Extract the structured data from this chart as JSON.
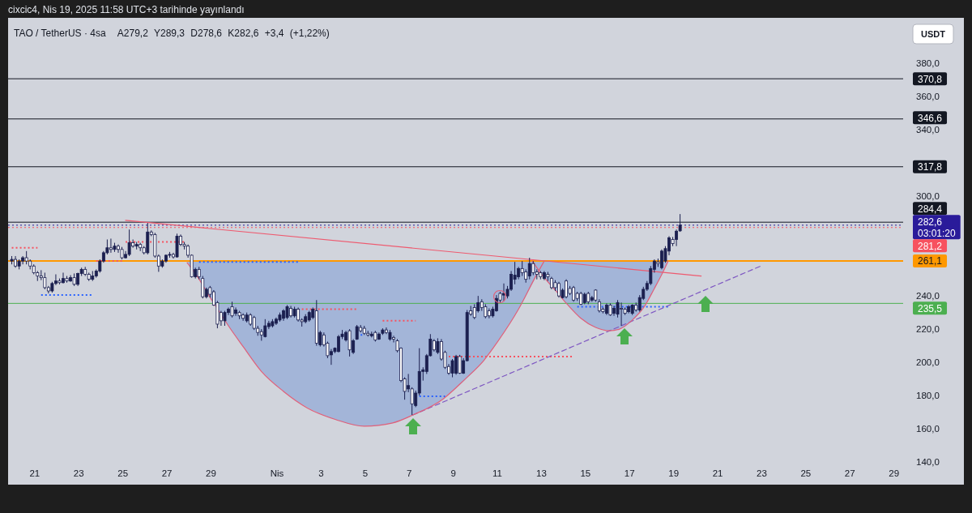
{
  "chart_data": {
    "type": "candlestick",
    "title": "TAO / TetherUS · 4sa",
    "subtitle": "A279,2 Y289,3 D278,6 K282,6 +3,4 (+1,22%)",
    "ylabel": "USDT",
    "annotations": [
      "cixcic4, Nis 19, 2025 11:58 UTC+3 tarihinde yayınlandı"
    ],
    "color": "#1b1f4f",
    "x": [
      "2025-03-19T23:00",
      "2025-03-20T03:00",
      "2025-03-20T07:00",
      "2025-03-20T11:00",
      "2025-03-20T15:00",
      "2025-03-20T19:00",
      "2025-03-20T23:00",
      "2025-03-21T03:00",
      "2025-03-21T07:00",
      "2025-03-21T11:00",
      "2025-03-21T15:00",
      "2025-03-21T19:00",
      "2025-03-21T23:00",
      "2025-03-22T03:00",
      "2025-03-22T07:00",
      "2025-03-22T11:00",
      "2025-03-22T15:00",
      "2025-03-22T19:00",
      "2025-03-22T23:00",
      "2025-03-23T03:00",
      "2025-03-23T07:00",
      "2025-03-23T11:00",
      "2025-03-23T15:00",
      "2025-03-23T19:00",
      "2025-03-23T23:00",
      "2025-03-24T03:00",
      "2025-03-24T07:00",
      "2025-03-24T11:00",
      "2025-03-24T15:00",
      "2025-03-24T19:00",
      "2025-03-24T23:00",
      "2025-03-25T03:00",
      "2025-03-25T07:00",
      "2025-03-25T11:00",
      "2025-03-25T15:00",
      "2025-03-25T19:00",
      "2025-03-25T23:00",
      "2025-03-26T03:00",
      "2025-03-26T07:00",
      "2025-03-26T11:00",
      "2025-03-26T15:00",
      "2025-03-26T19:00",
      "2025-03-26T23:00",
      "2025-03-27T03:00",
      "2025-03-27T07:00",
      "2025-03-27T11:00",
      "2025-03-27T15:00",
      "2025-03-27T19:00",
      "2025-03-27T23:00",
      "2025-03-28T03:00",
      "2025-03-28T07:00",
      "2025-03-28T11:00",
      "2025-03-28T15:00",
      "2025-03-28T19:00",
      "2025-03-28T23:00",
      "2025-03-29T03:00",
      "2025-03-29T07:00",
      "2025-03-29T11:00",
      "2025-03-29T15:00",
      "2025-03-29T19:00",
      "2025-03-29T23:00",
      "2025-03-30T03:00",
      "2025-03-30T07:00",
      "2025-03-30T11:00",
      "2025-03-30T15:00",
      "2025-03-30T19:00",
      "2025-03-30T23:00",
      "2025-03-31T03:00",
      "2025-03-31T07:00",
      "2025-03-31T11:00",
      "2025-03-31T15:00",
      "2025-03-31T19:00",
      "2025-03-31T23:00",
      "2025-04-01T03:00",
      "2025-04-01T07:00",
      "2025-04-01T11:00",
      "2025-04-01T15:00",
      "2025-04-01T19:00",
      "2025-04-01T23:00",
      "2025-04-02T03:00",
      "2025-04-02T07:00",
      "2025-04-02T11:00",
      "2025-04-02T15:00",
      "2025-04-02T19:00",
      "2025-04-02T23:00",
      "2025-04-03T03:00",
      "2025-04-03T07:00",
      "2025-04-03T11:00",
      "2025-04-03T15:00",
      "2025-04-03T19:00",
      "2025-04-03T23:00",
      "2025-04-04T03:00",
      "2025-04-04T07:00",
      "2025-04-04T11:00",
      "2025-04-04T15:00",
      "2025-04-04T19:00",
      "2025-04-04T23:00",
      "2025-04-05T03:00",
      "2025-04-05T07:00",
      "2025-04-05T11:00",
      "2025-04-05T15:00",
      "2025-04-05T19:00",
      "2025-04-05T23:00",
      "2025-04-06T03:00",
      "2025-04-06T07:00",
      "2025-04-06T11:00",
      "2025-04-06T15:00",
      "2025-04-06T19:00",
      "2025-04-06T23:00",
      "2025-04-07T03:00",
      "2025-04-07T07:00",
      "2025-04-07T11:00",
      "2025-04-07T15:00",
      "2025-04-07T19:00",
      "2025-04-07T23:00",
      "2025-04-08T03:00",
      "2025-04-08T07:00",
      "2025-04-08T11:00",
      "2025-04-08T15:00",
      "2025-04-08T19:00",
      "2025-04-08T23:00",
      "2025-04-09T03:00",
      "2025-04-09T07:00",
      "2025-04-09T11:00",
      "2025-04-09T15:00",
      "2025-04-09T19:00",
      "2025-04-09T23:00",
      "2025-04-10T03:00",
      "2025-04-10T07:00",
      "2025-04-10T11:00",
      "2025-04-10T15:00",
      "2025-04-10T19:00",
      "2025-04-10T23:00",
      "2025-04-11T03:00",
      "2025-04-11T07:00",
      "2025-04-11T11:00",
      "2025-04-11T15:00",
      "2025-04-11T19:00",
      "2025-04-11T23:00",
      "2025-04-12T03:00",
      "2025-04-12T07:00",
      "2025-04-12T11:00",
      "2025-04-12T15:00",
      "2025-04-12T19:00",
      "2025-04-12T23:00",
      "2025-04-13T03:00",
      "2025-04-13T07:00",
      "2025-04-13T11:00",
      "2025-04-13T15:00",
      "2025-04-13T19:00",
      "2025-04-13T23:00",
      "2025-04-14T03:00",
      "2025-04-14T07:00",
      "2025-04-14T11:00",
      "2025-04-14T15:00",
      "2025-04-14T19:00",
      "2025-04-14T23:00",
      "2025-04-15T03:00",
      "2025-04-15T07:00",
      "2025-04-15T11:00",
      "2025-04-15T15:00",
      "2025-04-15T19:00",
      "2025-04-15T23:00",
      "2025-04-16T03:00",
      "2025-04-16T07:00",
      "2025-04-16T11:00",
      "2025-04-16T15:00",
      "2025-04-16T19:00",
      "2025-04-16T23:00",
      "2025-04-17T03:00",
      "2025-04-17T07:00",
      "2025-04-17T11:00",
      "2025-04-17T15:00",
      "2025-04-17T19:00",
      "2025-04-17T23:00",
      "2025-04-18T03:00",
      "2025-04-18T07:00",
      "2025-04-18T11:00",
      "2025-04-18T15:00",
      "2025-04-18T19:00",
      "2025-04-18T23:00",
      "2025-04-19T03:00",
      "2025-04-19T07:00"
    ],
    "ohlc": [
      [
        261,
        264,
        259,
        262
      ],
      [
        262,
        264,
        257,
        258
      ],
      [
        258,
        262,
        256,
        261
      ],
      [
        261,
        264,
        259,
        263
      ],
      [
        263,
        267,
        259,
        261
      ],
      [
        261,
        262,
        256,
        258
      ],
      [
        258,
        259,
        253,
        254
      ],
      [
        254,
        255,
        249,
        252
      ],
      [
        252,
        255.5,
        249.5,
        251
      ],
      [
        251,
        254,
        244,
        245
      ],
      [
        245,
        246,
        241.5,
        243
      ],
      [
        243,
        248.5,
        242,
        247.5
      ],
      [
        247.5,
        253,
        246.5,
        249
      ],
      [
        249,
        250.5,
        247,
        248
      ],
      [
        248,
        254,
        247.5,
        250.5
      ],
      [
        250.5,
        252,
        248,
        249
      ],
      [
        249,
        252.5,
        248.5,
        251
      ],
      [
        251,
        253.5,
        246,
        247
      ],
      [
        247,
        254,
        246,
        253.5
      ],
      [
        253.5,
        257,
        252,
        256
      ],
      [
        256,
        257.5,
        252,
        253
      ],
      [
        253,
        254,
        249,
        250
      ],
      [
        250,
        255,
        249,
        252
      ],
      [
        252,
        256,
        251,
        255
      ],
      [
        255,
        262,
        254,
        261
      ],
      [
        261,
        267,
        260,
        266
      ],
      [
        266,
        274,
        265,
        269
      ],
      [
        269,
        274.5,
        266,
        268
      ],
      [
        268,
        272,
        266.5,
        270
      ],
      [
        270,
        271,
        266,
        268
      ],
      [
        268,
        269.5,
        262,
        263
      ],
      [
        263,
        267,
        262.5,
        265
      ],
      [
        265,
        280,
        264,
        272
      ],
      [
        272,
        274,
        269,
        270
      ],
      [
        270,
        272.5,
        268,
        271
      ],
      [
        271,
        272,
        267,
        269
      ],
      [
        269,
        270,
        265,
        266
      ],
      [
        266,
        284,
        265,
        278.5
      ],
      [
        278.5,
        279.5,
        276,
        277
      ],
      [
        277,
        278,
        263,
        264
      ],
      [
        264,
        265,
        254.5,
        258
      ],
      [
        258,
        262,
        257,
        261
      ],
      [
        261,
        265,
        260,
        264.5
      ],
      [
        264.5,
        266.5,
        263,
        265
      ],
      [
        265,
        266,
        262.5,
        263.5
      ],
      [
        263.5,
        277.5,
        263,
        276
      ],
      [
        276,
        277,
        270,
        271
      ],
      [
        271,
        272.5,
        268,
        270
      ],
      [
        270,
        271,
        263,
        264.5
      ],
      [
        264.5,
        265,
        251,
        251.5
      ],
      [
        251.5,
        257,
        250.5,
        256
      ],
      [
        256,
        257.5,
        250,
        251.5
      ],
      [
        250.5,
        252,
        238.5,
        239.5
      ],
      [
        239.5,
        245,
        238.5,
        244
      ],
      [
        245,
        246,
        239,
        241
      ],
      [
        242.5,
        243.5,
        234,
        234.5
      ],
      [
        236,
        237,
        220.5,
        223
      ],
      [
        230,
        231,
        222,
        225
      ],
      [
        225,
        231,
        222,
        230
      ],
      [
        230,
        233,
        228.5,
        232
      ],
      [
        233.5,
        236.5,
        227,
        228
      ],
      [
        229.5,
        233,
        228,
        231.5
      ],
      [
        230,
        231,
        226,
        228
      ],
      [
        228.5,
        229.5,
        225,
        226.5
      ],
      [
        225,
        230,
        224,
        228.5
      ],
      [
        228.5,
        229.5,
        222,
        223
      ],
      [
        227,
        228,
        219.5,
        220.5
      ],
      [
        220.5,
        222,
        216,
        218
      ],
      [
        218.5,
        220,
        213,
        216.5
      ],
      [
        215.5,
        226,
        215,
        222
      ],
      [
        221.5,
        225,
        220,
        223.5
      ],
      [
        222,
        226,
        221,
        224.5
      ],
      [
        223.5,
        227,
        222.5,
        226
      ],
      [
        225.5,
        230,
        224.5,
        228.5
      ],
      [
        226.5,
        232,
        225,
        231
      ],
      [
        227,
        234.5,
        226,
        233.5
      ],
      [
        232.5,
        234,
        227,
        228
      ],
      [
        228,
        233.5,
        227,
        232
      ],
      [
        232,
        233,
        224.5,
        225.5
      ],
      [
        225.5,
        226.5,
        221.5,
        224.5
      ],
      [
        224.5,
        229,
        223.5,
        227.5
      ],
      [
        225.5,
        231,
        224.5,
        230
      ],
      [
        227,
        233,
        226,
        232
      ],
      [
        231,
        237.5,
        210,
        211.5
      ],
      [
        210.5,
        219,
        209.5,
        218
      ],
      [
        216.5,
        218,
        209.5,
        210.5
      ],
      [
        211.5,
        212.5,
        202.5,
        204
      ],
      [
        204.5,
        208,
        198.5,
        206.5
      ],
      [
        206.5,
        209,
        205.5,
        208.5
      ],
      [
        206.5,
        216.5,
        206,
        215.5
      ],
      [
        215.5,
        219.5,
        214,
        217
      ],
      [
        213.5,
        219,
        212.5,
        218
      ],
      [
        219,
        220,
        203.5,
        207.5
      ],
      [
        206,
        214,
        205,
        213
      ],
      [
        214,
        222.5,
        213.5,
        221.5
      ],
      [
        221,
        222.5,
        218,
        219
      ],
      [
        220.5,
        222,
        216.5,
        217.5
      ],
      [
        217.5,
        219,
        215.5,
        216.5
      ],
      [
        216,
        218.5,
        215,
        217
      ],
      [
        218,
        219,
        212.5,
        213.5
      ],
      [
        214,
        218,
        213.5,
        217
      ],
      [
        217.5,
        220.5,
        216.5,
        219.5
      ],
      [
        219.5,
        221,
        217,
        218
      ],
      [
        214,
        219.5,
        213,
        218
      ],
      [
        215,
        216,
        212,
        214
      ],
      [
        213,
        214,
        206,
        207
      ],
      [
        208.5,
        209,
        188,
        189
      ],
      [
        190,
        191,
        177.5,
        182.5
      ],
      [
        184,
        193,
        182,
        186
      ],
      [
        184,
        185,
        168.3,
        175
      ],
      [
        174,
        183,
        173,
        181.5
      ],
      [
        181.5,
        208.5,
        180,
        194.5
      ],
      [
        194.5,
        197,
        189,
        195.5
      ],
      [
        194.5,
        205,
        193,
        204
      ],
      [
        204,
        217,
        203.5,
        214
      ],
      [
        213,
        214,
        206.5,
        207.5
      ],
      [
        206,
        214.5,
        205,
        212.5
      ],
      [
        212.5,
        214,
        201,
        202
      ],
      [
        206,
        207,
        196,
        197
      ],
      [
        197.5,
        199,
        192.5,
        193.5
      ],
      [
        193.5,
        202,
        191,
        201
      ],
      [
        193.5,
        204.5,
        192.5,
        203.5
      ],
      [
        203.5,
        204.5,
        193,
        193.5
      ],
      [
        193.5,
        202.5,
        193,
        201
      ],
      [
        201,
        231.5,
        200.5,
        230
      ],
      [
        231,
        234,
        228,
        229
      ],
      [
        233,
        235,
        226,
        227
      ],
      [
        231,
        240,
        230,
        236
      ],
      [
        236.5,
        238,
        231,
        233
      ],
      [
        233.5,
        235,
        226.5,
        227.5
      ],
      [
        231,
        232.5,
        226.5,
        228
      ],
      [
        228,
        233.5,
        227,
        232
      ],
      [
        231,
        240.5,
        230.5,
        238.5
      ],
      [
        241.5,
        242.5,
        236,
        237.5
      ],
      [
        240.5,
        247.5,
        237,
        241.5
      ],
      [
        240,
        246,
        238.5,
        244
      ],
      [
        244,
        255,
        243,
        253
      ],
      [
        250,
        260.5,
        247,
        252.5
      ],
      [
        251.5,
        257.5,
        250,
        256.5
      ],
      [
        256.5,
        261,
        252,
        254
      ],
      [
        254.5,
        256,
        248,
        250
      ],
      [
        252,
        263,
        250,
        259.5
      ],
      [
        259.5,
        261,
        252.5,
        254
      ],
      [
        254.5,
        256,
        250,
        253
      ],
      [
        254,
        255,
        250,
        251.5
      ],
      [
        250.5,
        255,
        249.5,
        254
      ],
      [
        253,
        254.5,
        249,
        251.5
      ],
      [
        250.5,
        251.5,
        244,
        245
      ],
      [
        248,
        249.5,
        243,
        245
      ],
      [
        247.5,
        248.5,
        239,
        240
      ],
      [
        239,
        244.5,
        238.5,
        243.5
      ],
      [
        249,
        250,
        238.5,
        239.5
      ],
      [
        244.5,
        246,
        240.5,
        241.5
      ],
      [
        245,
        246,
        236.5,
        237.5
      ],
      [
        241.5,
        242.5,
        237,
        238.5
      ],
      [
        241.5,
        242.5,
        234.5,
        235
      ],
      [
        236,
        242,
        235,
        241
      ],
      [
        241.5,
        242.5,
        235,
        236.5
      ],
      [
        237.5,
        240,
        236.5,
        239
      ],
      [
        243.5,
        244,
        236.5,
        237.5
      ],
      [
        236.5,
        238,
        230,
        231
      ],
      [
        232,
        233,
        229.5,
        230.5
      ],
      [
        229.5,
        235.5,
        228.5,
        234.5
      ],
      [
        234.5,
        235.5,
        228,
        228.5
      ],
      [
        229.5,
        234,
        228,
        232.5
      ],
      [
        229,
        237.5,
        227,
        236
      ],
      [
        232.5,
        236,
        222,
        232
      ],
      [
        232,
        233,
        228.5,
        229.5
      ],
      [
        230.5,
        234.5,
        229.5,
        233.5
      ],
      [
        229.5,
        235,
        228.5,
        234.5
      ],
      [
        234.5,
        236,
        230.5,
        231.5
      ],
      [
        231.5,
        240.5,
        230.5,
        239
      ],
      [
        238.5,
        245.5,
        237.5,
        244
      ],
      [
        244,
        249,
        243,
        247.5
      ],
      [
        247.5,
        258,
        246.5,
        256.5
      ],
      [
        256,
        262,
        254,
        261
      ],
      [
        260.5,
        262.5,
        257.5,
        259.5
      ],
      [
        257,
        268,
        256,
        267
      ],
      [
        261,
        270,
        260,
        268.5
      ],
      [
        267,
        276,
        264.5,
        275
      ],
      [
        274,
        275.5,
        270,
        271.5
      ],
      [
        274,
        280,
        270,
        279
      ],
      [
        279.2,
        289.3,
        278.6,
        282.6
      ]
    ],
    "series": [
      {
        "type": "line",
        "color": "#f7525f",
        "line_style": "dotted",
        "x": [
          "2025-03-19T23:00",
          "2025-03-21T03:00"
        ],
        "values": [
          269,
          269
        ]
      },
      {
        "type": "line",
        "color": "#2962ff",
        "line_style": "dotted",
        "x": [
          "2025-03-21T07:00",
          "2025-03-23T15:00"
        ],
        "values": [
          240.5,
          240.5
        ]
      },
      {
        "type": "line",
        "color": "#f7525f",
        "line_style": "dotted",
        "x": [
          "2025-03-23T19:00",
          "2025-03-24T23:00"
        ],
        "values": [
          261,
          261
        ]
      },
      {
        "type": "line",
        "color": "#f7525f",
        "line_style": "dotted",
        "x": [
          "2025-03-25T03:00",
          "2025-03-27T19:00"
        ],
        "values": [
          272.5,
          272.5
        ]
      },
      {
        "type": "line",
        "color": "#2962ff",
        "line_style": "dotted",
        "x": [
          "2025-03-28T11:00",
          "2025-04-01T23:00"
        ],
        "values": [
          260.5,
          260.5
        ]
      },
      {
        "type": "line",
        "color": "#f7525f",
        "line_style": "dotted",
        "x": [
          "2025-04-02T03:00",
          "2025-04-04T15:00"
        ],
        "values": [
          232,
          232
        ]
      },
      {
        "type": "line",
        "color": "#2962ff",
        "line_style": "dotted",
        "x": [
          "2025-04-04T19:00",
          "2025-04-04T23:00"
        ],
        "values": [
          216.5,
          216.5
        ]
      },
      {
        "type": "line",
        "color": "#f7525f",
        "line_style": "dotted",
        "x": [
          "2025-04-05T19:00",
          "2025-04-07T07:00"
        ],
        "values": [
          225,
          225
        ]
      },
      {
        "type": "line",
        "color": "#2962ff",
        "line_style": "dotted",
        "x": [
          "2025-04-07T11:00",
          "2025-04-08T15:00"
        ],
        "values": [
          179.5,
          179.5
        ]
      },
      {
        "type": "line",
        "color": "#f7525f",
        "line_style": "dotted",
        "x": [
          "2025-04-08T19:00",
          "2025-04-14T11:00"
        ],
        "values": [
          203.5,
          203.5
        ]
      },
      {
        "type": "line",
        "color": "#2962ff",
        "line_style": "dotted",
        "x": [
          "2025-04-14T15:00",
          "2025-04-18T19:00"
        ],
        "values": [
          233.5,
          233.5
        ]
      },
      {
        "type": "line",
        "color": "#ee5a6f",
        "line_style": "solid",
        "x": [
          "2025-03-25T03:00",
          "2025-04-20T06:00"
        ],
        "values": [
          285.5,
          252
        ]
      },
      {
        "type": "line",
        "color": "#7e57c2",
        "line_style": "dashed",
        "x": [
          "2025-04-07T04:00",
          "2025-04-23T01:00"
        ],
        "values": [
          168.3,
          258.5
        ]
      },
      {
        "type": "line",
        "color": "#e0607a",
        "line_style": "solid",
        "x": [
          "2025-03-27T22:00",
          "2025-03-28T10:00",
          "2025-03-28T22:00",
          "2025-03-29T08:00",
          "2025-03-29T19:00",
          "2025-03-30T11:00",
          "2025-03-31T07:00",
          "2025-04-01T07:00",
          "2025-04-02T09:00",
          "2025-04-03T16:00",
          "2025-04-04T23:00",
          "2025-04-06T06:00",
          "2025-04-07T04:00",
          "2025-04-08T13:00",
          "2025-04-09T13:00",
          "2025-04-10T09:00",
          "2025-04-11T01:00",
          "2025-04-11T23:00",
          "2025-04-12T16:00",
          "2025-04-13T03:00"
        ],
        "values": [
          260,
          251,
          240,
          231.5,
          222,
          209.5,
          194.5,
          182.5,
          172.5,
          165.5,
          161.5,
          163.5,
          168.3,
          178,
          190,
          201,
          213,
          232,
          250,
          261
        ]
      },
      {
        "type": "line",
        "color": "#e0607a",
        "line_style": "solid",
        "x": [
          "2025-04-12T14:00",
          "2025-04-13T01:00",
          "2025-04-13T15:00",
          "2025-04-14T04:00",
          "2025-04-14T19:00",
          "2025-04-15T11:00",
          "2025-04-16T02:00",
          "2025-04-16T13:00",
          "2025-04-17T02:00",
          "2025-04-17T16:00",
          "2025-04-18T03:00",
          "2025-04-18T12:00",
          "2025-04-18T18:00"
        ],
        "values": [
          261,
          252.5,
          243.5,
          235,
          226.5,
          221,
          219,
          220,
          225,
          233.5,
          244.5,
          254,
          261
        ]
      }
    ],
    "xlim": [
      "2025-03-19T19:00",
      "2025-04-29T10:00"
    ],
    "xticks": [
      {
        "value": "2025-03-21",
        "label": "21"
      },
      {
        "value": "2025-03-23",
        "label": "23"
      },
      {
        "value": "2025-03-25",
        "label": "25"
      },
      {
        "value": "2025-03-27",
        "label": "27"
      },
      {
        "value": "2025-03-29",
        "label": "29"
      },
      {
        "value": "2025-04-01",
        "label": "Nis"
      },
      {
        "value": "2025-04-03",
        "label": "3"
      },
      {
        "value": "2025-04-05",
        "label": "5"
      },
      {
        "value": "2025-04-07",
        "label": "7"
      },
      {
        "value": "2025-04-09",
        "label": "9"
      },
      {
        "value": "2025-04-11",
        "label": "11"
      },
      {
        "value": "2025-04-13",
        "label": "13"
      },
      {
        "value": "2025-04-15",
        "label": "15"
      },
      {
        "value": "2025-04-17",
        "label": "17"
      },
      {
        "value": "2025-04-19",
        "label": "19"
      },
      {
        "value": "2025-04-21",
        "label": "21"
      },
      {
        "value": "2025-04-23",
        "label": "23"
      },
      {
        "value": "2025-04-25",
        "label": "25"
      },
      {
        "value": "2025-04-27",
        "label": "27"
      },
      {
        "value": "2025-04-29",
        "label": "29"
      }
    ],
    "ylim": [
      140,
      407.5
    ],
    "yticks": [
      {
        "value": 140,
        "label": "140,0"
      },
      {
        "value": 160,
        "label": "160,0"
      },
      {
        "value": 180,
        "label": "180,0"
      },
      {
        "value": 200,
        "label": "200,0"
      },
      {
        "value": 220,
        "label": "220,0"
      },
      {
        "value": 240,
        "label": "240,0"
      },
      {
        "value": 300,
        "label": "300,0"
      },
      {
        "value": 340,
        "label": "340,0"
      },
      {
        "value": 360,
        "label": "360,0"
      },
      {
        "value": 380,
        "label": "380,0"
      }
    ],
    "ref_lines": [
      {
        "axis": "y",
        "value": 370.8,
        "label": "370,8",
        "color": "#131722"
      },
      {
        "axis": "y",
        "value": 346.6,
        "label": "346,6",
        "color": "#131722"
      },
      {
        "axis": "y",
        "value": 317.8,
        "label": "317,8",
        "color": "#131722"
      },
      {
        "axis": "y",
        "value": 284.4,
        "label": "284,4",
        "color": "#131722"
      },
      {
        "axis": "y",
        "value": 282.6,
        "label": "282,6\n03:01:20",
        "color": "#2a1b9a",
        "line_style": "dotted"
      },
      {
        "axis": "y",
        "value": 281.2,
        "label": "281,2",
        "color": "#f7525f",
        "line_style": "dotted"
      },
      {
        "axis": "y",
        "value": 261.1,
        "label": "261,1",
        "color": "#ff9800"
      },
      {
        "axis": "y",
        "value": 235.5,
        "label": "235,5",
        "color": "#4caf50"
      }
    ]
  }
}
